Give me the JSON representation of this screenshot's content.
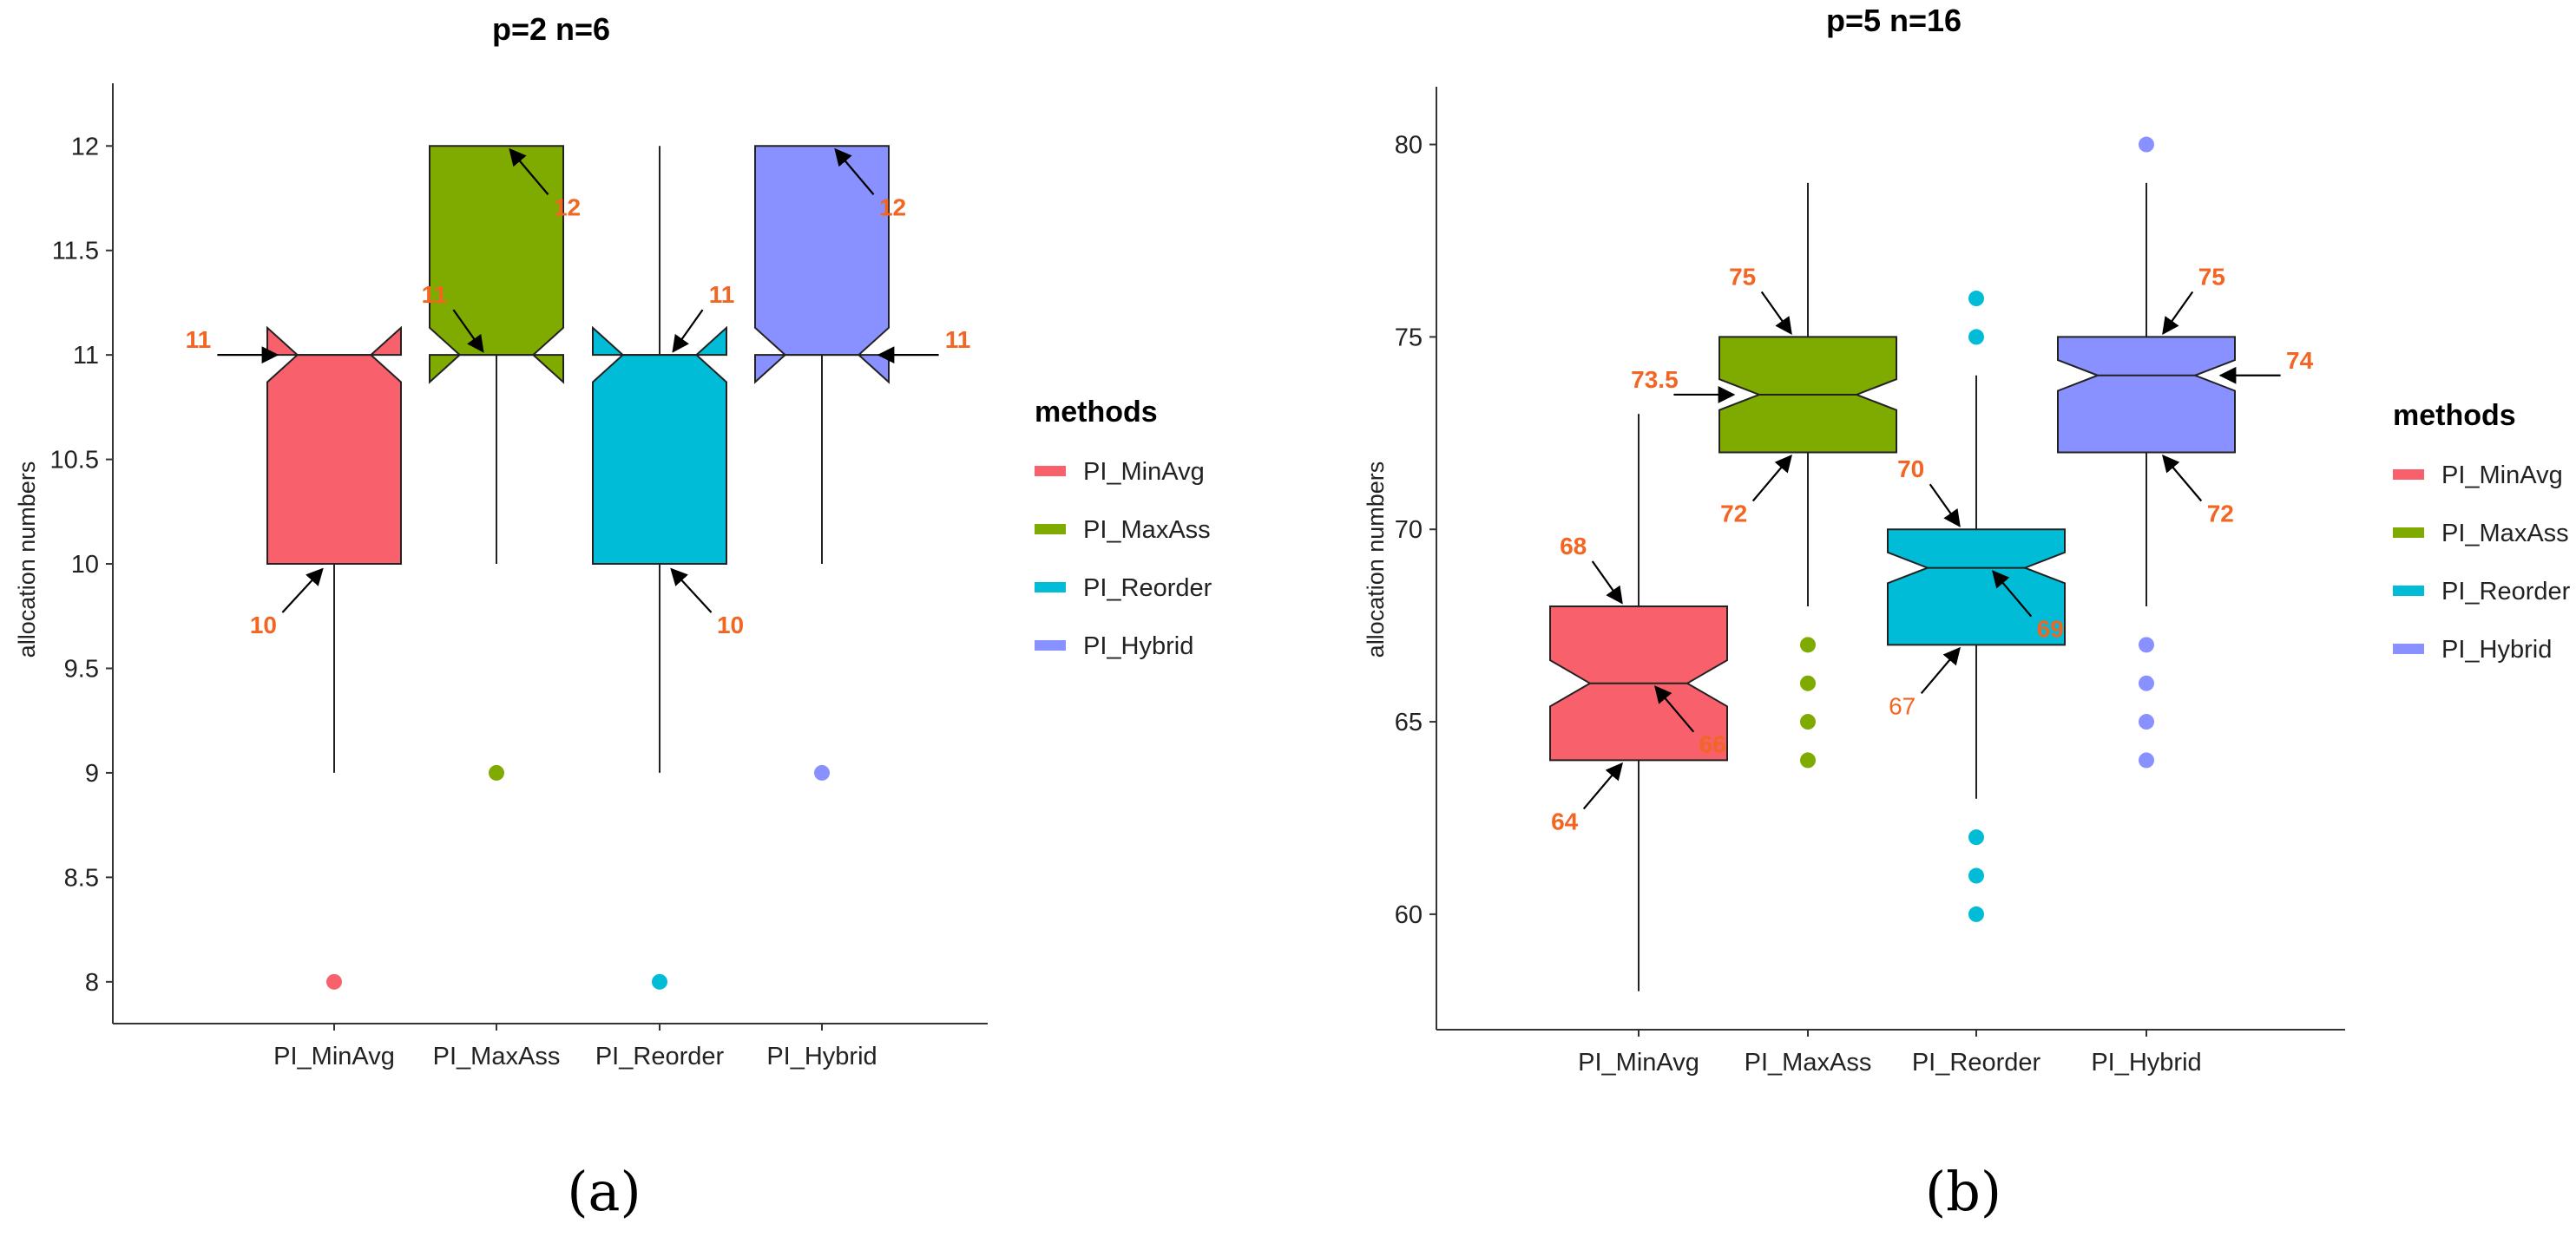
{
  "legend": {
    "title": "methods",
    "items": [
      {
        "label": "PI_MinAvg",
        "color": "#F8606B"
      },
      {
        "label": "PI_MaxAss",
        "color": "#7FAA00"
      },
      {
        "label": "PI_Reorder",
        "color": "#00BCD6"
      },
      {
        "label": "PI_Hybrid",
        "color": "#8891FF"
      }
    ]
  },
  "chart_data": [
    {
      "type": "boxplot",
      "notched": true,
      "caption": "(a)",
      "title": "p=2   n=6",
      "ylabel": "allocation numbers",
      "ylim": [
        7.8,
        12.3
      ],
      "yticks": [
        8,
        8.5,
        9,
        9.5,
        10,
        10.5,
        11,
        11.5,
        12
      ],
      "ytick_labels": [
        "8",
        "8.5",
        "9",
        "9.5",
        "10",
        "10.5",
        "11",
        "11.5",
        "12"
      ],
      "categories": [
        "PI_MinAvg",
        "PI_MaxAss",
        "PI_Reorder",
        "PI_Hybrid"
      ],
      "boxes": [
        {
          "name": "PI_MinAvg",
          "color": "#F8606B",
          "q1": 10,
          "median": 11,
          "q3": 11,
          "notch_low": 10.87,
          "notch_high": 11.13,
          "whisker_low": 9,
          "whisker_high": 11,
          "outliers": [
            8
          ]
        },
        {
          "name": "PI_MaxAss",
          "color": "#7FAA00",
          "q1": 11,
          "median": 11,
          "q3": 12,
          "notch_low": 10.87,
          "notch_high": 11.13,
          "whisker_low": 10,
          "whisker_high": 12,
          "outliers": [
            9
          ]
        },
        {
          "name": "PI_Reorder",
          "color": "#00BCD6",
          "q1": 10,
          "median": 11,
          "q3": 11,
          "notch_low": 10.87,
          "notch_high": 11.13,
          "whisker_low": 9,
          "whisker_high": 12,
          "outliers": [
            8
          ]
        },
        {
          "name": "PI_Hybrid",
          "color": "#8891FF",
          "q1": 11,
          "median": 11,
          "q3": 12,
          "notch_low": 10.87,
          "notch_high": 11.13,
          "whisker_low": 10,
          "whisker_high": 12,
          "outliers": [
            9
          ]
        }
      ],
      "annotations": [
        {
          "text": "11",
          "box": 0,
          "value": 11,
          "side": "left",
          "bold": true
        },
        {
          "text": "10",
          "box": 0,
          "value": 10,
          "side": "below-left",
          "bold": true
        },
        {
          "text": "11",
          "box": 1,
          "value": 11,
          "side": "upper-left",
          "bold": true
        },
        {
          "text": "12",
          "box": 1,
          "value": 12,
          "side": "lower-right",
          "bold": true
        },
        {
          "text": "11",
          "box": 2,
          "value": 11,
          "side": "upper-right",
          "bold": true
        },
        {
          "text": "10",
          "box": 2,
          "value": 10,
          "side": "below-right",
          "bold": true
        },
        {
          "text": "12",
          "box": 3,
          "value": 12,
          "side": "lower-right",
          "bold": true
        },
        {
          "text": "11",
          "box": 3,
          "value": 11,
          "side": "right",
          "bold": true
        }
      ]
    },
    {
      "type": "boxplot",
      "notched": true,
      "caption": "(b)",
      "title": "p=5   n=16",
      "ylabel": "allocation numbers",
      "ylim": [
        57,
        81.5
      ],
      "yticks": [
        60,
        65,
        70,
        75,
        80
      ],
      "ytick_labels": [
        "60",
        "65",
        "70",
        "75",
        "80"
      ],
      "categories": [
        "PI_MinAvg",
        "PI_MaxAss",
        "PI_Reorder",
        "PI_Hybrid"
      ],
      "boxes": [
        {
          "name": "PI_MinAvg",
          "color": "#F8606B",
          "q1": 64,
          "median": 66,
          "q3": 68,
          "notch_low": 65.4,
          "notch_high": 66.6,
          "whisker_low": 58,
          "whisker_high": 73,
          "outliers": []
        },
        {
          "name": "PI_MaxAss",
          "color": "#7FAA00",
          "q1": 72,
          "median": 73.5,
          "q3": 75,
          "notch_low": 73.1,
          "notch_high": 73.9,
          "whisker_low": 68,
          "whisker_high": 79,
          "outliers": [
            64,
            65,
            66,
            67
          ]
        },
        {
          "name": "PI_Reorder",
          "color": "#00BCD6",
          "q1": 67,
          "median": 69,
          "q3": 70,
          "notch_low": 68.6,
          "notch_high": 69.4,
          "whisker_low": 63,
          "whisker_high": 74,
          "outliers": [
            60,
            61,
            62,
            75,
            76
          ]
        },
        {
          "name": "PI_Hybrid",
          "color": "#8891FF",
          "q1": 72,
          "median": 74,
          "q3": 75,
          "notch_low": 73.6,
          "notch_high": 74.4,
          "whisker_low": 68,
          "whisker_high": 79,
          "outliers": [
            64,
            65,
            66,
            67,
            80
          ]
        }
      ],
      "annotations": [
        {
          "text": "68",
          "box": 0,
          "value": 68,
          "side": "upper-left",
          "bold": true
        },
        {
          "text": "66",
          "box": 0,
          "value": 66,
          "side": "lower-right",
          "bold": true
        },
        {
          "text": "64",
          "box": 0,
          "value": 64,
          "side": "lower-left",
          "bold": true
        },
        {
          "text": "75",
          "box": 1,
          "value": 75,
          "side": "upper-left",
          "bold": true
        },
        {
          "text": "73.5",
          "box": 1,
          "value": 73.5,
          "side": "left",
          "bold": true
        },
        {
          "text": "72",
          "box": 1,
          "value": 72,
          "side": "lower-left",
          "bold": true
        },
        {
          "text": "70",
          "box": 2,
          "value": 70,
          "side": "upper-left",
          "bold": true
        },
        {
          "text": "69",
          "box": 2,
          "value": 69,
          "side": "lower-right",
          "bold": true
        },
        {
          "text": "67",
          "box": 2,
          "value": 67,
          "side": "lower-left",
          "bold": false
        },
        {
          "text": "75",
          "box": 3,
          "value": 75,
          "side": "upper-right",
          "bold": true
        },
        {
          "text": "74",
          "box": 3,
          "value": 74,
          "side": "right",
          "bold": true
        },
        {
          "text": "72",
          "box": 3,
          "value": 72,
          "side": "lower-right",
          "bold": true
        }
      ]
    }
  ]
}
